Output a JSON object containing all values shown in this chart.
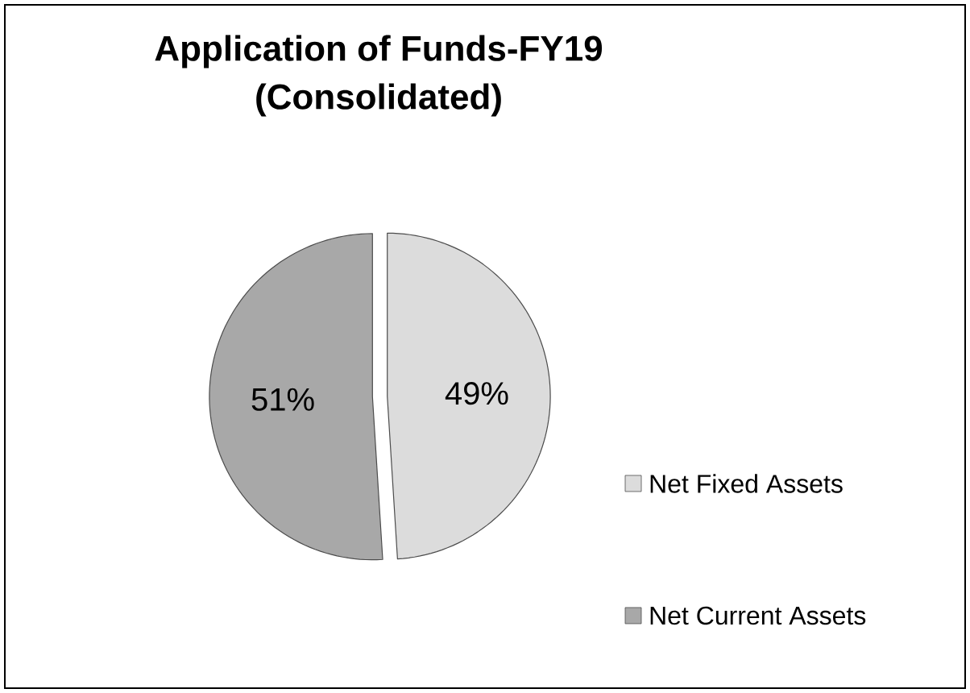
{
  "chart_data": {
    "type": "pie",
    "title": "Application of Funds-FY19",
    "subtitle": "(Consolidated)",
    "categories": [
      "Net Fixed Assets",
      "Net Current Assets"
    ],
    "values": [
      49,
      51
    ],
    "colors": [
      "#dcdcdc",
      "#a8a8a8"
    ],
    "value_labels": [
      "49%",
      "51%"
    ],
    "legend": "bottom right"
  }
}
